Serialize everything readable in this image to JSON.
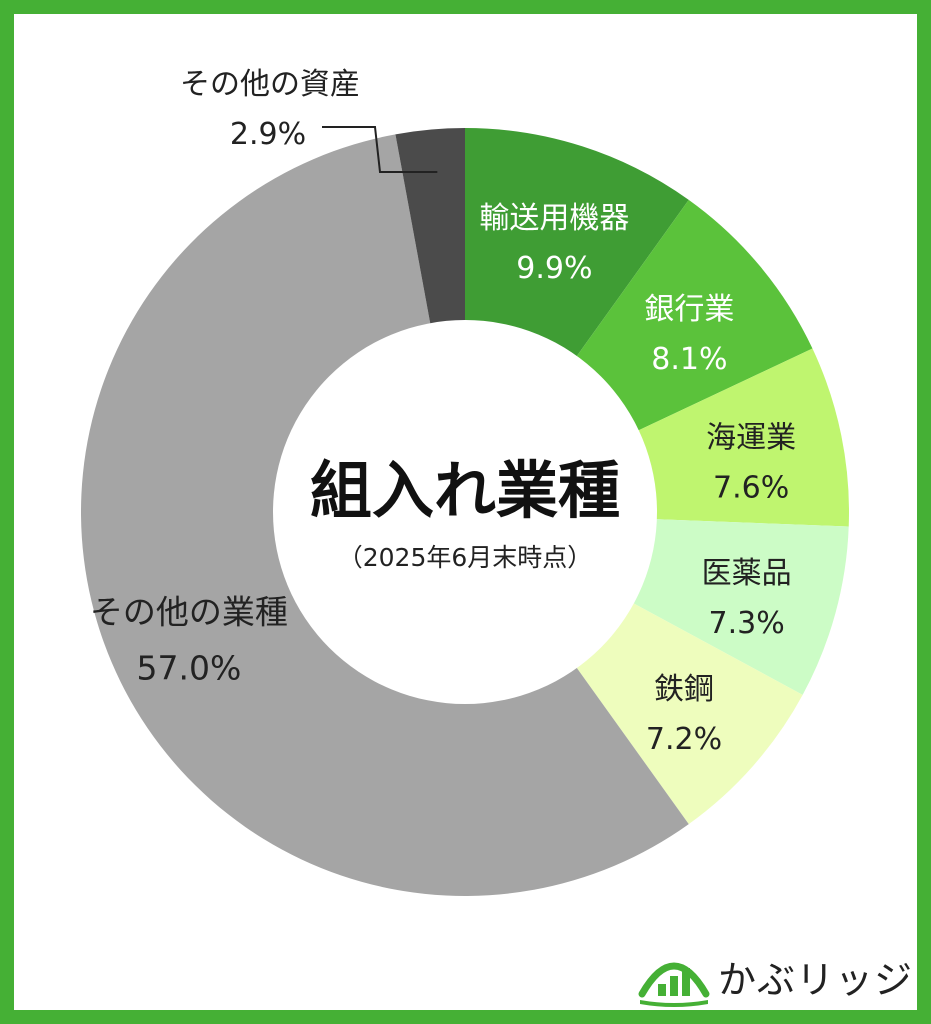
{
  "chart_data": {
    "type": "pie",
    "variant": "donut",
    "title": "組入れ業種",
    "subtitle": "（2025年6月末時点）",
    "start": "12 o'clock, clockwise",
    "slices": [
      {
        "name": "輸送用機器",
        "value": 9.9,
        "label": "9.9%",
        "color": "#3f9d34",
        "text_color": "#ffffff"
      },
      {
        "name": "銀行業",
        "value": 8.1,
        "label": "8.1%",
        "color": "#5bc23b",
        "text_color": "#ffffff"
      },
      {
        "name": "海運業",
        "value": 7.6,
        "label": "7.6%",
        "color": "#bff56f",
        "text_color": "#222222"
      },
      {
        "name": "医薬品",
        "value": 7.3,
        "label": "7.3%",
        "color": "#ccfcc6",
        "text_color": "#222222"
      },
      {
        "name": "鉄鋼",
        "value": 7.2,
        "label": "7.2%",
        "color": "#eefdbd",
        "text_color": "#222222"
      },
      {
        "name": "その他の業種",
        "value": 57.0,
        "label": "57.0%",
        "color": "#a5a5a5",
        "text_color": "#222222"
      },
      {
        "name": "その他の資産",
        "value": 2.9,
        "label": "2.9%",
        "color": "#4b4b4b",
        "text_color": "#222222"
      }
    ]
  },
  "frame_color": "#45b035",
  "brand": {
    "name": "かぶリッジ",
    "icon": "house-bar-chart-logo-icon",
    "color": "#45b035"
  }
}
